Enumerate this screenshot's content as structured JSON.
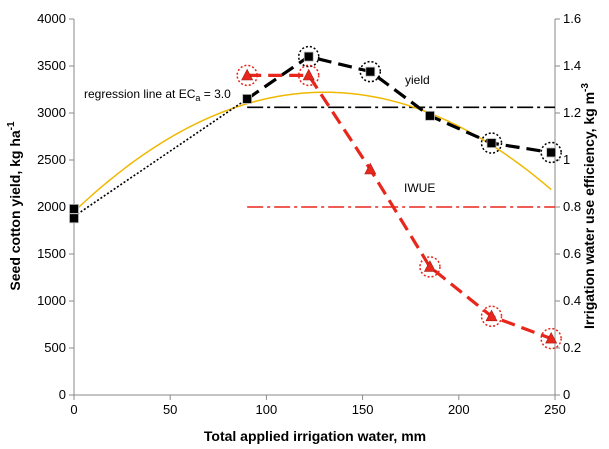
{
  "chart_data": {
    "type": "line",
    "xlabel": "Total applied irrigation water, mm",
    "ylabel_left": "Seed cotton yield, kg ha",
    "ylabel_left_sup": "-1",
    "ylabel_right": "Irrigation water use efficiency, kg m",
    "ylabel_right_sup": "-3",
    "xlim": [
      0,
      250
    ],
    "ylim_left": [
      0,
      4000
    ],
    "ylim_right": [
      0,
      1.6
    ],
    "xticks": [
      "0",
      "50",
      "100",
      "150",
      "200",
      "250"
    ],
    "yticks_left": [
      "0",
      "500",
      "1000",
      "1500",
      "2000",
      "2500",
      "3000",
      "3500",
      "4000"
    ],
    "yticks_right": [
      "0",
      "0.2",
      "0.4",
      "0.6",
      "0.8",
      "1",
      "1.2",
      "1.4",
      "1.6"
    ],
    "grid": false,
    "annotations": {
      "regression_prefix": "regression line at EC",
      "regression_sub": "a",
      "regression_suffix": " = 3.0",
      "yield_label": "yield",
      "iwue_label": "IWUE"
    },
    "series": [
      {
        "name": "yield",
        "axis": "left",
        "color": "#000000",
        "marker": "square",
        "x": [
          0,
          0,
          90,
          122,
          154,
          185,
          217,
          248
        ],
        "y": [
          1980,
          1880,
          3150,
          3600,
          3440,
          2970,
          2680,
          2580
        ],
        "circled": [
          false,
          false,
          false,
          true,
          true,
          false,
          true,
          true
        ]
      },
      {
        "name": "IWUE",
        "axis": "right",
        "color": "#e8261c",
        "marker": "triangle",
        "x": [
          90,
          122,
          154,
          185,
          217,
          248
        ],
        "y": [
          1.36,
          1.36,
          0.96,
          0.545,
          0.335,
          0.24
        ],
        "circled": [
          true,
          true,
          false,
          true,
          true,
          true
        ]
      }
    ],
    "fits": {
      "dotted_regression": {
        "color": "#000000",
        "x": [
          0,
          90
        ],
        "y": [
          1900,
          3150
        ]
      },
      "quadratic": {
        "color": "#f0b800",
        "a": -0.0748,
        "b": 19.5,
        "c": 1950,
        "x_range": [
          0,
          248
        ]
      }
    },
    "reference_lines": [
      {
        "axis": "left",
        "value": 3060,
        "x_range": [
          90,
          250
        ],
        "color": "#000000",
        "style": "dash-dot"
      },
      {
        "axis": "right",
        "value": 0.8,
        "x_range": [
          90,
          250
        ],
        "color": "#e8261c",
        "style": "dash-dot"
      }
    ]
  }
}
